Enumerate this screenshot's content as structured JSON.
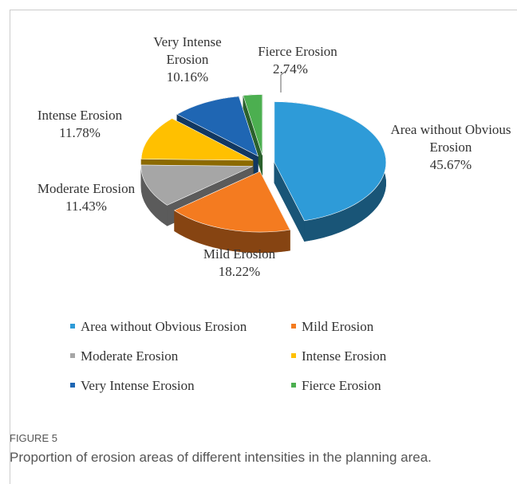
{
  "chart_data": {
    "type": "pie",
    "categories": [
      "Area without Obvious Erosion",
      "Mild Erosion",
      "Moderate Erosion",
      "Intense Erosion",
      "Very Intense Erosion",
      "Fierce Erosion"
    ],
    "values": [
      45.67,
      18.22,
      11.43,
      11.78,
      10.16,
      2.74
    ],
    "value_labels": [
      "45.67%",
      "18.22%",
      "11.43%",
      "11.78%",
      "10.16%",
      "2.74%"
    ],
    "colors": [
      "#2e9bd8",
      "#f47b20",
      "#a6a6a6",
      "#ffc000",
      "#1f66b3",
      "#4caf50"
    ],
    "legend": "bottom"
  },
  "figure_label": "FIGURE 5",
  "caption": "Proportion of erosion areas of different intensities in the planning area."
}
